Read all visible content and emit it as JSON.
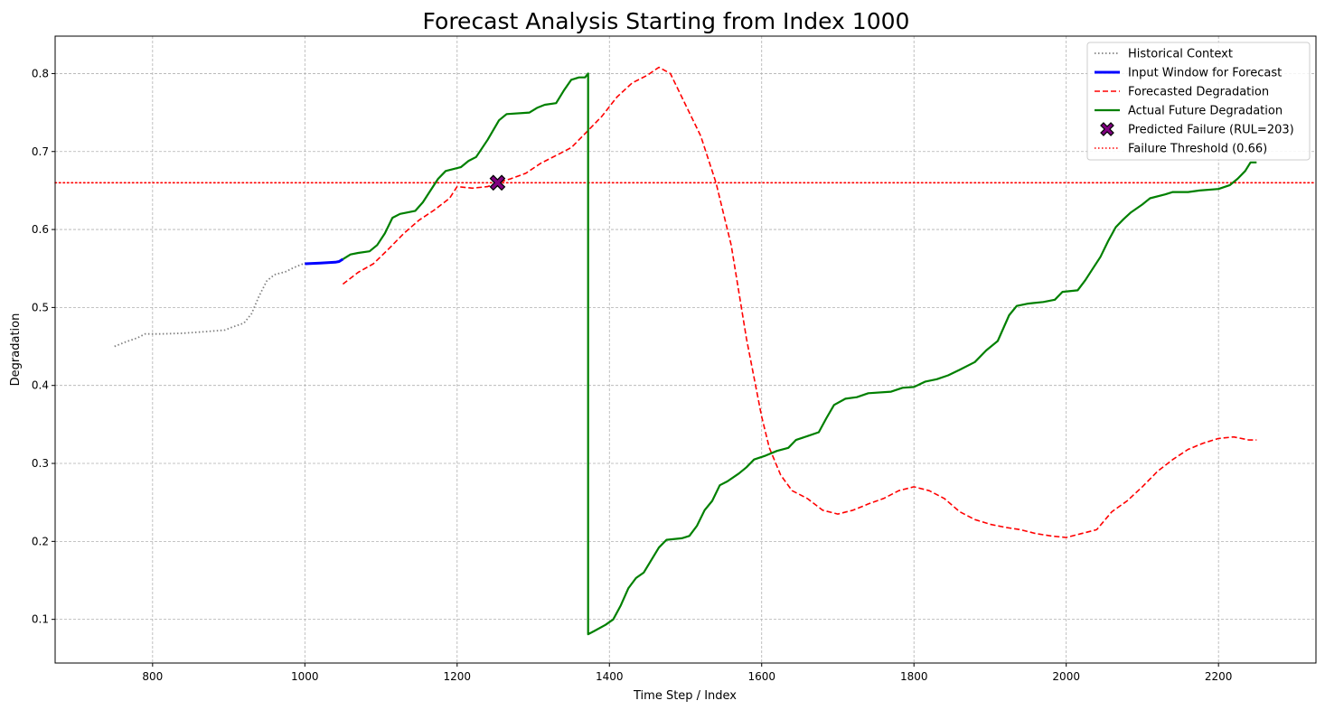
{
  "chart_data": {
    "type": "line",
    "title": "Forecast Analysis Starting from Index 1000",
    "xlabel": "Time Step / Index",
    "ylabel": "Degradation",
    "xlim": [
      672,
      2328
    ],
    "ylim": [
      0.044,
      0.848
    ],
    "xticks": [
      800,
      1000,
      1200,
      1400,
      1600,
      1800,
      2000,
      2200
    ],
    "yticks": [
      0.1,
      0.2,
      0.3,
      0.4,
      0.5,
      0.6,
      0.7,
      0.8
    ],
    "grid": true,
    "legend_position": "top-right",
    "series": [
      {
        "name": "Historical Context",
        "style": "dotted",
        "color": "#808080",
        "points": [
          [
            750,
            0.45
          ],
          [
            765,
            0.456
          ],
          [
            780,
            0.461
          ],
          [
            790,
            0.466
          ],
          [
            810,
            0.466
          ],
          [
            840,
            0.467
          ],
          [
            870,
            0.469
          ],
          [
            895,
            0.471
          ],
          [
            905,
            0.475
          ],
          [
            920,
            0.48
          ],
          [
            930,
            0.492
          ],
          [
            940,
            0.515
          ],
          [
            950,
            0.534
          ],
          [
            960,
            0.542
          ],
          [
            975,
            0.546
          ],
          [
            985,
            0.551
          ],
          [
            1000,
            0.557
          ]
        ]
      },
      {
        "name": "Input Window for Forecast",
        "style": "solid",
        "color": "#0000ff",
        "points": [
          [
            1000,
            0.556
          ],
          [
            1020,
            0.557
          ],
          [
            1040,
            0.558
          ],
          [
            1045,
            0.559
          ],
          [
            1050,
            0.562
          ]
        ]
      },
      {
        "name": "Forecasted Degradation",
        "style": "dashed",
        "color": "#ff0000",
        "points": [
          [
            1050,
            0.53
          ],
          [
            1070,
            0.545
          ],
          [
            1090,
            0.556
          ],
          [
            1110,
            0.575
          ],
          [
            1130,
            0.595
          ],
          [
            1150,
            0.612
          ],
          [
            1170,
            0.625
          ],
          [
            1190,
            0.64
          ],
          [
            1200,
            0.655
          ],
          [
            1220,
            0.653
          ],
          [
            1240,
            0.655
          ],
          [
            1253,
            0.66
          ],
          [
            1270,
            0.665
          ],
          [
            1290,
            0.672
          ],
          [
            1310,
            0.685
          ],
          [
            1330,
            0.695
          ],
          [
            1350,
            0.705
          ],
          [
            1370,
            0.725
          ],
          [
            1390,
            0.745
          ],
          [
            1410,
            0.77
          ],
          [
            1430,
            0.788
          ],
          [
            1450,
            0.798
          ],
          [
            1465,
            0.808
          ],
          [
            1480,
            0.8
          ],
          [
            1500,
            0.76
          ],
          [
            1520,
            0.72
          ],
          [
            1540,
            0.66
          ],
          [
            1560,
            0.58
          ],
          [
            1580,
            0.46
          ],
          [
            1600,
            0.36
          ],
          [
            1610,
            0.32
          ],
          [
            1625,
            0.285
          ],
          [
            1640,
            0.265
          ],
          [
            1660,
            0.255
          ],
          [
            1680,
            0.24
          ],
          [
            1700,
            0.235
          ],
          [
            1720,
            0.24
          ],
          [
            1740,
            0.248
          ],
          [
            1760,
            0.255
          ],
          [
            1780,
            0.265
          ],
          [
            1800,
            0.27
          ],
          [
            1820,
            0.265
          ],
          [
            1840,
            0.255
          ],
          [
            1860,
            0.238
          ],
          [
            1880,
            0.228
          ],
          [
            1900,
            0.222
          ],
          [
            1920,
            0.218
          ],
          [
            1940,
            0.215
          ],
          [
            1960,
            0.21
          ],
          [
            1980,
            0.207
          ],
          [
            2000,
            0.205
          ],
          [
            2020,
            0.21
          ],
          [
            2040,
            0.215
          ],
          [
            2060,
            0.238
          ],
          [
            2080,
            0.252
          ],
          [
            2100,
            0.27
          ],
          [
            2120,
            0.29
          ],
          [
            2140,
            0.305
          ],
          [
            2160,
            0.318
          ],
          [
            2180,
            0.326
          ],
          [
            2200,
            0.332
          ],
          [
            2220,
            0.334
          ],
          [
            2240,
            0.33
          ],
          [
            2250,
            0.33
          ]
        ]
      },
      {
        "name": "Actual Future Degradation",
        "style": "solid",
        "color": "#008000",
        "points": [
          [
            1050,
            0.562
          ],
          [
            1060,
            0.568
          ],
          [
            1070,
            0.57
          ],
          [
            1085,
            0.572
          ],
          [
            1095,
            0.58
          ],
          [
            1105,
            0.595
          ],
          [
            1115,
            0.615
          ],
          [
            1125,
            0.62
          ],
          [
            1145,
            0.624
          ],
          [
            1155,
            0.635
          ],
          [
            1165,
            0.65
          ],
          [
            1175,
            0.665
          ],
          [
            1185,
            0.675
          ],
          [
            1205,
            0.68
          ],
          [
            1215,
            0.688
          ],
          [
            1225,
            0.693
          ],
          [
            1240,
            0.715
          ],
          [
            1255,
            0.74
          ],
          [
            1265,
            0.748
          ],
          [
            1295,
            0.75
          ],
          [
            1305,
            0.756
          ],
          [
            1315,
            0.76
          ],
          [
            1330,
            0.762
          ],
          [
            1340,
            0.778
          ],
          [
            1350,
            0.792
          ],
          [
            1360,
            0.795
          ],
          [
            1368,
            0.795
          ],
          [
            1372,
            0.8
          ],
          [
            1372,
            0.081
          ],
          [
            1380,
            0.085
          ],
          [
            1395,
            0.093
          ],
          [
            1405,
            0.1
          ],
          [
            1415,
            0.118
          ],
          [
            1425,
            0.14
          ],
          [
            1435,
            0.153
          ],
          [
            1445,
            0.16
          ],
          [
            1455,
            0.176
          ],
          [
            1465,
            0.192
          ],
          [
            1475,
            0.202
          ],
          [
            1495,
            0.204
          ],
          [
            1505,
            0.207
          ],
          [
            1515,
            0.22
          ],
          [
            1525,
            0.24
          ],
          [
            1535,
            0.252
          ],
          [
            1545,
            0.272
          ],
          [
            1555,
            0.277
          ],
          [
            1570,
            0.287
          ],
          [
            1580,
            0.295
          ],
          [
            1590,
            0.305
          ],
          [
            1605,
            0.31
          ],
          [
            1620,
            0.316
          ],
          [
            1635,
            0.32
          ],
          [
            1645,
            0.33
          ],
          [
            1660,
            0.335
          ],
          [
            1675,
            0.34
          ],
          [
            1685,
            0.358
          ],
          [
            1695,
            0.375
          ],
          [
            1710,
            0.383
          ],
          [
            1725,
            0.385
          ],
          [
            1740,
            0.39
          ],
          [
            1770,
            0.392
          ],
          [
            1785,
            0.397
          ],
          [
            1800,
            0.398
          ],
          [
            1815,
            0.405
          ],
          [
            1830,
            0.408
          ],
          [
            1845,
            0.413
          ],
          [
            1860,
            0.42
          ],
          [
            1880,
            0.43
          ],
          [
            1895,
            0.445
          ],
          [
            1910,
            0.457
          ],
          [
            1925,
            0.49
          ],
          [
            1935,
            0.502
          ],
          [
            1950,
            0.505
          ],
          [
            1970,
            0.507
          ],
          [
            1985,
            0.51
          ],
          [
            1995,
            0.52
          ],
          [
            2015,
            0.522
          ],
          [
            2025,
            0.535
          ],
          [
            2035,
            0.55
          ],
          [
            2045,
            0.565
          ],
          [
            2055,
            0.585
          ],
          [
            2065,
            0.603
          ],
          [
            2075,
            0.613
          ],
          [
            2085,
            0.622
          ],
          [
            2100,
            0.632
          ],
          [
            2110,
            0.64
          ],
          [
            2130,
            0.645
          ],
          [
            2140,
            0.648
          ],
          [
            2160,
            0.648
          ],
          [
            2175,
            0.65
          ],
          [
            2200,
            0.652
          ],
          [
            2215,
            0.657
          ],
          [
            2225,
            0.665
          ],
          [
            2235,
            0.675
          ],
          [
            2242,
            0.686
          ],
          [
            2250,
            0.686
          ]
        ]
      }
    ],
    "predicted_failure": {
      "name": "Predicted Failure (RUL=203)",
      "x": 1253,
      "y": 0.66,
      "color": "#800080",
      "marker": "X"
    },
    "threshold": {
      "name": "Failure Threshold (0.66)",
      "value": 0.66,
      "color": "#ff0000",
      "style": "dotted"
    }
  }
}
